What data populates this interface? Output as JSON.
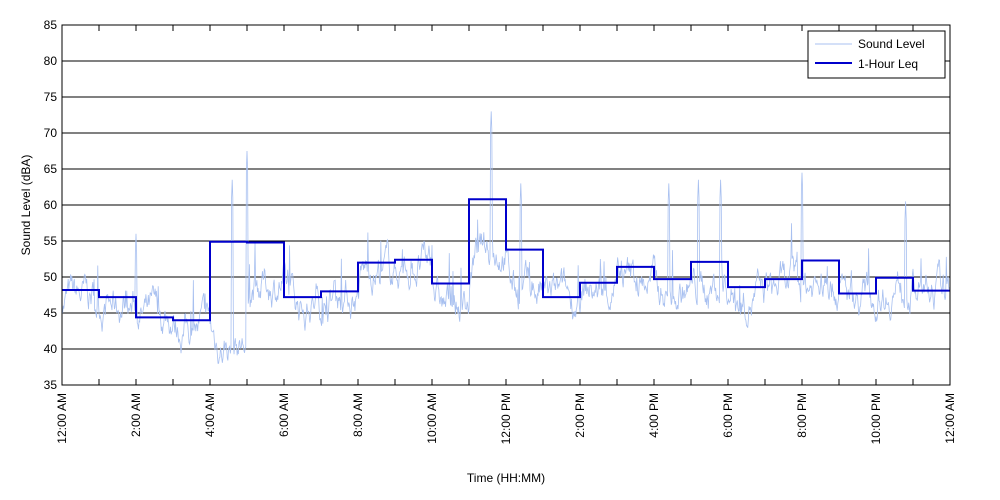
{
  "chart_data": {
    "type": "line",
    "title": "",
    "xlabel": "Time (HH:MM)",
    "ylabel": "Sound Level (dBA)",
    "ylim": [
      35,
      85
    ],
    "yticks": [
      35,
      40,
      45,
      50,
      55,
      60,
      65,
      70,
      75,
      80,
      85
    ],
    "xlim_hours": [
      0,
      24
    ],
    "xticks": [
      {
        "hour": 0,
        "label": "12:00 AM"
      },
      {
        "hour": 2,
        "label": "2:00 AM"
      },
      {
        "hour": 4,
        "label": "4:00 AM"
      },
      {
        "hour": 6,
        "label": "6:00 AM"
      },
      {
        "hour": 8,
        "label": "8:00 AM"
      },
      {
        "hour": 10,
        "label": "10:00 AM"
      },
      {
        "hour": 12,
        "label": "12:00 PM"
      },
      {
        "hour": 14,
        "label": "2:00 PM"
      },
      {
        "hour": 16,
        "label": "4:00 PM"
      },
      {
        "hour": 18,
        "label": "6:00 PM"
      },
      {
        "hour": 20,
        "label": "8:00 PM"
      },
      {
        "hour": 22,
        "label": "10:00 PM"
      },
      {
        "hour": 24,
        "label": "12:00 AM"
      }
    ],
    "grid": "horizontal",
    "legend_position": "top-right",
    "series": [
      {
        "name": "Sound Level",
        "color": "#a8c0f0",
        "style": "thin",
        "hourly_median": [
          47,
          46,
          44.5,
          43,
          40.5,
          49,
          46,
          47.5,
          51,
          51.5,
          46,
          54,
          48,
          47,
          48,
          49.5,
          48,
          48.5,
          47.5,
          48.5,
          49,
          47,
          48.5,
          47.5
        ],
        "peaks": [
          {
            "hour": 2.0,
            "value": 56
          },
          {
            "hour": 4.6,
            "value": 63.5
          },
          {
            "hour": 5.0,
            "value": 67.5
          },
          {
            "hour": 11.6,
            "value": 73
          },
          {
            "hour": 12.4,
            "value": 63
          },
          {
            "hour": 16.4,
            "value": 63
          },
          {
            "hour": 17.2,
            "value": 63.5
          },
          {
            "hour": 17.8,
            "value": 63.5
          },
          {
            "hour": 20.0,
            "value": 64.5
          },
          {
            "hour": 22.8,
            "value": 60.5
          }
        ]
      },
      {
        "name": "1-Hour Leq",
        "color": "#0000cc",
        "style": "step",
        "values": [
          48.2,
          47.2,
          44.4,
          44.0,
          54.9,
          54.8,
          47.2,
          48.0,
          52.0,
          52.4,
          49.1,
          60.8,
          53.8,
          47.2,
          49.2,
          51.4,
          49.7,
          52.1,
          48.6,
          49.7,
          52.3,
          47.7,
          49.9,
          48.1
        ]
      }
    ]
  }
}
